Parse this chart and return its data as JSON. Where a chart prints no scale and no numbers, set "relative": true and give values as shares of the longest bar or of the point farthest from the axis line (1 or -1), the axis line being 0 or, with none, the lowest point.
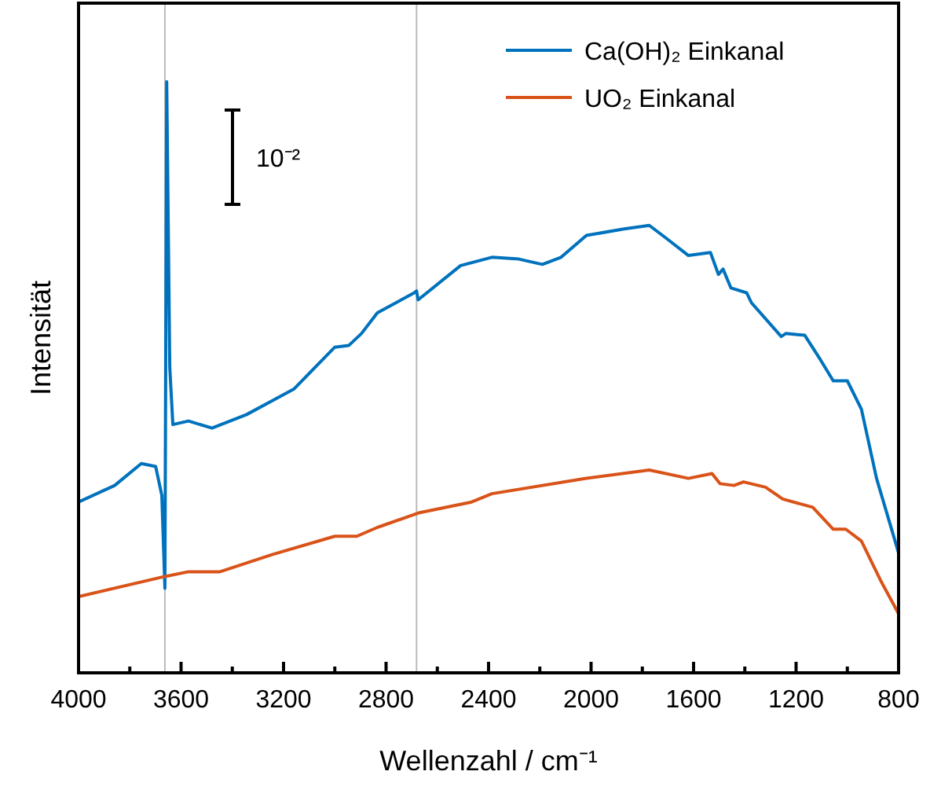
{
  "chart_data": {
    "type": "line",
    "relative": true,
    "xlabel": "Wellenzahl / cm⁻¹",
    "ylabel": "Intensität",
    "xlim": [
      4000,
      800
    ],
    "xticks": [
      4000,
      {
        "value": 3800,
        "label": null
      },
      3600,
      {
        "value": 3400,
        "label": null
      },
      3200,
      {
        "value": 3000,
        "label": null
      },
      2800,
      {
        "value": 2600,
        "label": null
      },
      2400,
      {
        "value": 2200,
        "label": null
      },
      2000,
      {
        "value": 1800,
        "label": null
      },
      1600,
      {
        "value": 1400,
        "label": null
      },
      1200,
      {
        "value": 1000,
        "label": null
      },
      800
    ],
    "tick_labels": "x",
    "legend": "top right",
    "grid": false,
    "marker": "none",
    "line_style": "solid",
    "annotations": [
      "10⁻²"
    ],
    "ref_lines": [
      {
        "axis": "x",
        "value": 3663,
        "color": "#bbbbbb"
      },
      {
        "axis": "x",
        "value": 2681,
        "color": "#bbbbbb"
      }
    ],
    "series": [
      {
        "name": "Ca(OH)₂ Einkanal",
        "color": "#0072bd",
        "x": [
          4000,
          3859,
          3755,
          3699,
          3675,
          3663,
          3656,
          3644,
          3632,
          3571,
          3479,
          3344,
          3160,
          3000,
          2945,
          2896,
          2834,
          2690,
          2681,
          2675,
          2509,
          2387,
          2282,
          2190,
          2117,
          2018,
          1871,
          1773,
          1712,
          1620,
          1534,
          1503,
          1485,
          1454,
          1393,
          1374,
          1258,
          1240,
          1166,
          1104,
          1055,
          1000,
          945,
          886,
          800
        ],
        "values": [
          0.289,
          0.317,
          0.354,
          0.349,
          0.3,
          0.143,
          1.0,
          0.517,
          0.42,
          0.426,
          0.414,
          0.437,
          0.48,
          0.551,
          0.554,
          0.574,
          0.609,
          0.643,
          0.646,
          0.631,
          0.689,
          0.703,
          0.7,
          0.691,
          0.703,
          0.74,
          0.751,
          0.757,
          0.737,
          0.706,
          0.711,
          0.674,
          0.683,
          0.651,
          0.643,
          0.626,
          0.569,
          0.574,
          0.571,
          0.529,
          0.494,
          0.494,
          0.446,
          0.329,
          0.203
        ]
      },
      {
        "name": "UO₂ Einkanal",
        "color": "#d95319",
        "x": [
          4000,
          3663,
          3571,
          3448,
          3245,
          3000,
          2914,
          2834,
          2669,
          2466,
          2387,
          2018,
          1773,
          1620,
          1528,
          1497,
          1442,
          1405,
          1319,
          1252,
          1135,
          1055,
          1006,
          945,
          871,
          800
        ],
        "values": [
          0.129,
          0.163,
          0.171,
          0.171,
          0.2,
          0.231,
          0.231,
          0.246,
          0.271,
          0.289,
          0.303,
          0.329,
          0.343,
          0.329,
          0.337,
          0.32,
          0.317,
          0.323,
          0.314,
          0.294,
          0.28,
          0.243,
          0.243,
          0.223,
          0.157,
          0.1
        ]
      }
    ]
  }
}
